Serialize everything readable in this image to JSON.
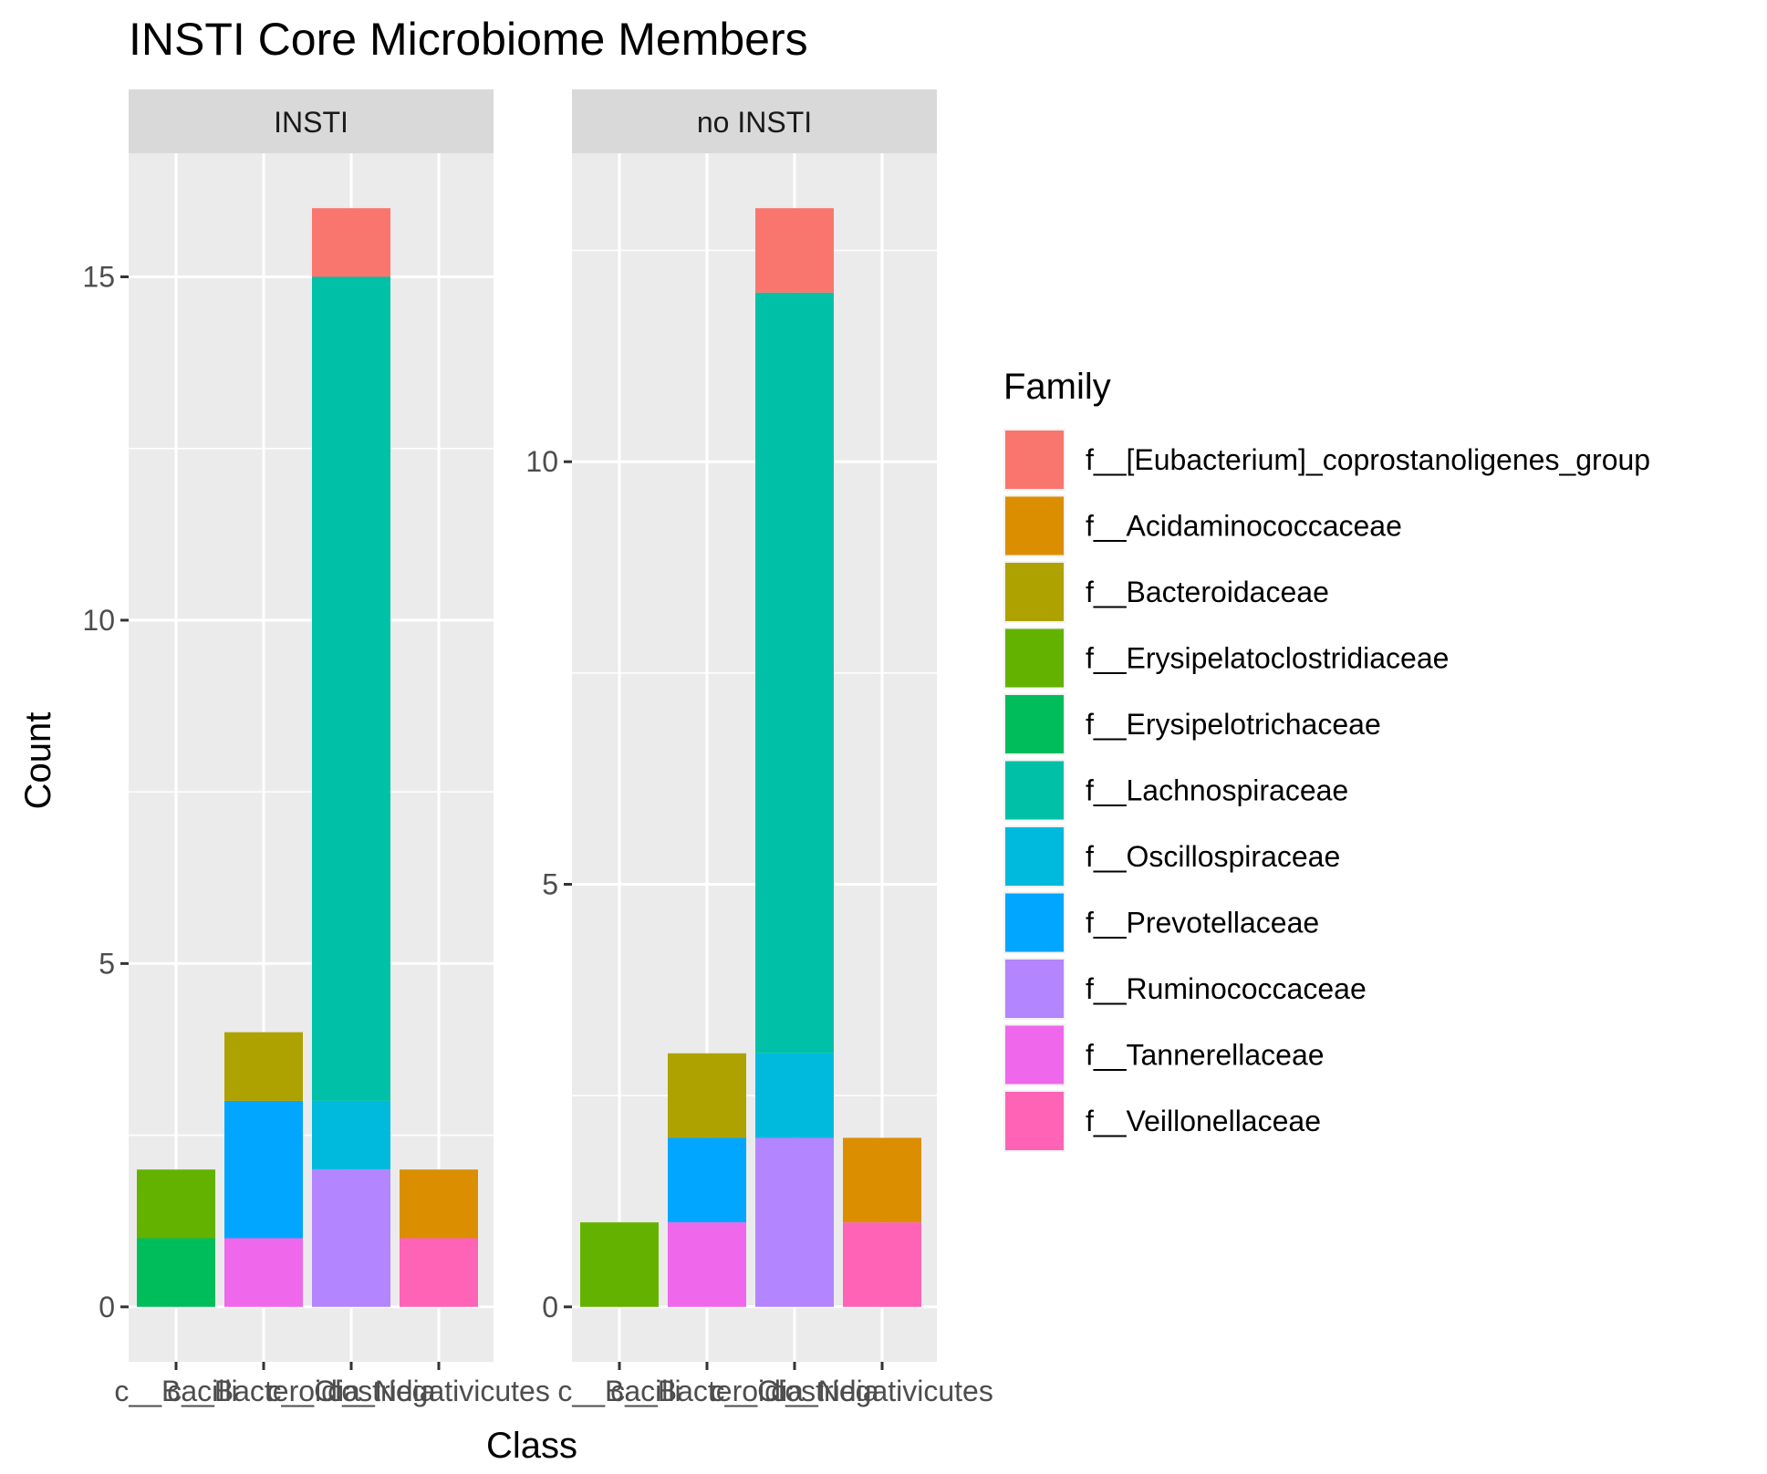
{
  "chart_data": {
    "type": "bar",
    "stacked": true,
    "faceted": true,
    "title": "INSTI Core Microbiome Members",
    "xlabel": "Class",
    "ylabel": "Count",
    "categories": [
      "c__Bacilli",
      "c__Bacteroidia",
      "c__Clostridia",
      "c__Negativicutes"
    ],
    "legend": {
      "title": "Family",
      "position": "right",
      "entries": [
        {
          "name": "f__[Eubacterium]_coprostanoligenes_group",
          "color": "#F8766D"
        },
        {
          "name": "f__Acidaminococcaceae",
          "color": "#DB8E00"
        },
        {
          "name": "f__Bacteroidaceae",
          "color": "#AEA200"
        },
        {
          "name": "f__Erysipelatoclostridiaceae",
          "color": "#64B200"
        },
        {
          "name": "f__Erysipelotrichaceae",
          "color": "#00BD5C"
        },
        {
          "name": "f__Lachnospiraceae",
          "color": "#00C1A7"
        },
        {
          "name": "f__Oscillospiraceae",
          "color": "#00BADE"
        },
        {
          "name": "f__Prevotellaceae",
          "color": "#00A6FF"
        },
        {
          "name": "f__Ruminococcaceae",
          "color": "#B385FF"
        },
        {
          "name": "f__Tannerellaceae",
          "color": "#EF67EB"
        },
        {
          "name": "f__Veillonellaceae",
          "color": "#FF63B6"
        }
      ]
    },
    "grid": true,
    "panels": [
      {
        "label": "INSTI",
        "ylim": [
          -0.8,
          16.8
        ],
        "yticks": [
          0,
          5,
          10,
          15
        ],
        "bars": [
          {
            "category": "c__Bacilli",
            "segments": [
              {
                "family": "f__Erysipelotrichaceae",
                "value": 1
              },
              {
                "family": "f__Erysipelatoclostridiaceae",
                "value": 1
              }
            ]
          },
          {
            "category": "c__Bacteroidia",
            "segments": [
              {
                "family": "f__Tannerellaceae",
                "value": 1
              },
              {
                "family": "f__Prevotellaceae",
                "value": 2
              },
              {
                "family": "f__Bacteroidaceae",
                "value": 1
              }
            ]
          },
          {
            "category": "c__Clostridia",
            "segments": [
              {
                "family": "f__Ruminococcaceae",
                "value": 2
              },
              {
                "family": "f__Oscillospiraceae",
                "value": 1
              },
              {
                "family": "f__Lachnospiraceae",
                "value": 12
              },
              {
                "family": "f__[Eubacterium]_coprostanoligenes_group",
                "value": 1
              }
            ]
          },
          {
            "category": "c__Negativicutes",
            "segments": [
              {
                "family": "f__Veillonellaceae",
                "value": 1
              },
              {
                "family": "f__Acidaminococcaceae",
                "value": 1
              }
            ]
          }
        ]
      },
      {
        "label": "no INSTI",
        "ylim": [
          -0.65,
          13.65
        ],
        "yticks": [
          0,
          5,
          10
        ],
        "bars": [
          {
            "category": "c__Bacilli",
            "segments": [
              {
                "family": "f__Erysipelatoclostridiaceae",
                "value": 1
              }
            ]
          },
          {
            "category": "c__Bacteroidia",
            "segments": [
              {
                "family": "f__Tannerellaceae",
                "value": 1
              },
              {
                "family": "f__Prevotellaceae",
                "value": 1
              },
              {
                "family": "f__Bacteroidaceae",
                "value": 1
              }
            ]
          },
          {
            "category": "c__Clostridia",
            "segments": [
              {
                "family": "f__Ruminococcaceae",
                "value": 2
              },
              {
                "family": "f__Oscillospiraceae",
                "value": 1
              },
              {
                "family": "f__Lachnospiraceae",
                "value": 9
              },
              {
                "family": "f__[Eubacterium]_coprostanoligenes_group",
                "value": 1
              }
            ]
          },
          {
            "category": "c__Negativicutes",
            "segments": [
              {
                "family": "f__Veillonellaceae",
                "value": 1
              },
              {
                "family": "f__Acidaminococcaceae",
                "value": 1
              }
            ]
          }
        ]
      }
    ]
  }
}
